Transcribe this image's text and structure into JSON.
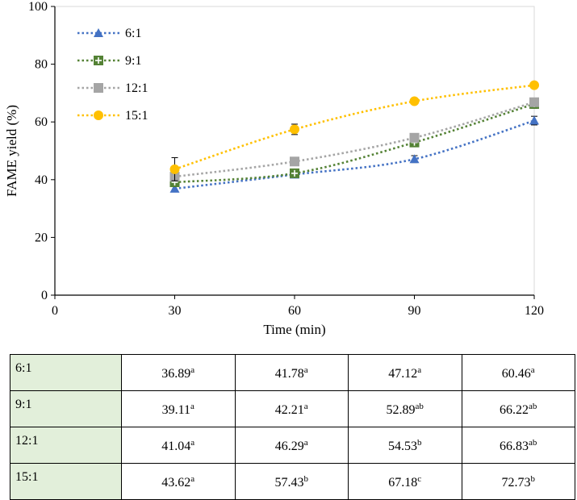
{
  "chart_data": {
    "type": "line",
    "title": "",
    "xlabel": "Time (min)",
    "ylabel": "FAME yield (%)",
    "xlim": [
      0,
      120
    ],
    "ylim": [
      0,
      100
    ],
    "x_ticks": [
      0,
      30,
      60,
      90,
      120
    ],
    "y_ticks": [
      0,
      20,
      40,
      60,
      80,
      100
    ],
    "grid": false,
    "legend_position": "top-left",
    "x": [
      30,
      60,
      90,
      120
    ],
    "series": [
      {
        "name": "6:1",
        "values": [
          36.89,
          41.78,
          47.12,
          60.46
        ],
        "errors": [
          1.0,
          1.0,
          1.2,
          1.5
        ],
        "color": "#4472c4",
        "marker": "triangle"
      },
      {
        "name": "9:1",
        "values": [
          39.11,
          42.21,
          52.89,
          66.22
        ],
        "errors": [
          1.0,
          1.0,
          1.2,
          1.5
        ],
        "color": "#548235",
        "marker": "square-plus"
      },
      {
        "name": "12:1",
        "values": [
          41.04,
          46.29,
          54.53,
          66.83
        ],
        "errors": [
          1.0,
          0.8,
          1.0,
          1.2
        ],
        "color": "#a5a5a5",
        "marker": "square"
      },
      {
        "name": "15:1",
        "values": [
          43.62,
          57.43,
          67.18,
          72.73
        ],
        "errors": [
          4.0,
          1.8,
          1.0,
          0.8
        ],
        "color": "#ffc000",
        "marker": "circle"
      }
    ]
  },
  "table": {
    "rows": [
      {
        "label": "6:1",
        "cells": [
          {
            "value": "36.89",
            "sup": "a"
          },
          {
            "value": "41.78",
            "sup": "a"
          },
          {
            "value": "47.12",
            "sup": "a"
          },
          {
            "value": "60.46",
            "sup": "a"
          }
        ]
      },
      {
        "label": "9:1",
        "cells": [
          {
            "value": "39.11",
            "sup": "a"
          },
          {
            "value": "42.21",
            "sup": "a"
          },
          {
            "value": "52.89",
            "sup": "ab"
          },
          {
            "value": "66.22",
            "sup": "ab"
          }
        ]
      },
      {
        "label": "12:1",
        "cells": [
          {
            "value": "41.04",
            "sup": "a"
          },
          {
            "value": "46.29",
            "sup": "a"
          },
          {
            "value": "54.53",
            "sup": "b"
          },
          {
            "value": "66.83",
            "sup": "ab"
          }
        ]
      },
      {
        "label": "15:1",
        "cells": [
          {
            "value": "43.62",
            "sup": "a"
          },
          {
            "value": "57.43",
            "sup": "b"
          },
          {
            "value": "67.18",
            "sup": "c"
          },
          {
            "value": "72.73",
            "sup": "b"
          }
        ]
      }
    ]
  }
}
